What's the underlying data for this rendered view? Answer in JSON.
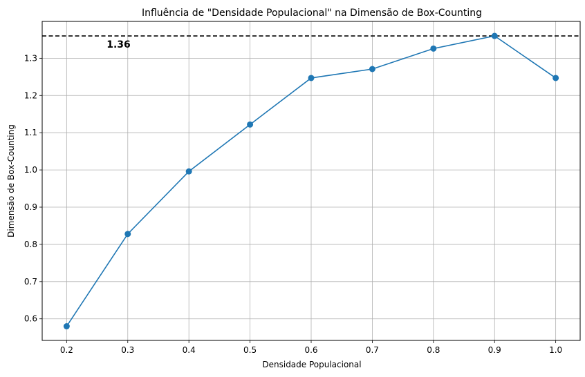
{
  "chart_data": {
    "type": "line",
    "title": "Influência de \"Densidade Populacional\" na Dimensão de Box-Counting",
    "xlabel": "Densidade Populacional",
    "ylabel": "Dimensão de Box-Counting",
    "x": [
      0.2,
      0.3,
      0.4,
      0.5,
      0.6,
      0.7,
      0.8,
      0.9,
      1.0
    ],
    "series": [
      {
        "values": [
          0.58,
          0.828,
          0.996,
          1.122,
          1.247,
          1.271,
          1.326,
          1.36,
          1.247
        ],
        "color": "#1f77b4",
        "marker": "circle"
      }
    ],
    "xticks": [
      "0.2",
      "0.3",
      "0.4",
      "0.5",
      "0.6",
      "0.7",
      "0.8",
      "0.9",
      "1.0"
    ],
    "yticks": [
      "0.6",
      "0.7",
      "0.8",
      "0.9",
      "1.0",
      "1.1",
      "1.2",
      "1.3"
    ],
    "xlim": [
      0.16,
      1.04
    ],
    "ylim": [
      0.542,
      1.399
    ],
    "grid": true,
    "reference_line": {
      "value": 1.36,
      "style": "dashed",
      "color": "#000000"
    },
    "annotation": {
      "text": "1.36",
      "x": 0.285,
      "y": 1.36
    }
  }
}
